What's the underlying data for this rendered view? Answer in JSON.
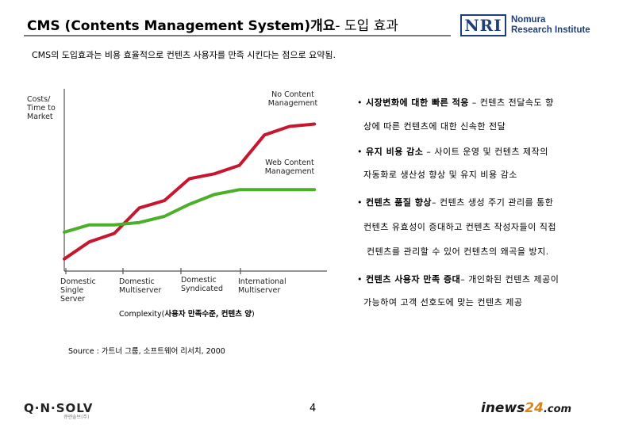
{
  "header": {
    "title_main": "CMS (Contents Management System)개요",
    "title_sub": "- 도입 효과",
    "logo_mark": "NRI",
    "logo_name_line1": "Nomura",
    "logo_name_line2": "Research Institute"
  },
  "summary": "CMS의 도입효과는 비용 효율적으로 컨텐츠 사용자를 만족 시킨다는 점으로 요약됨.",
  "chart_data": {
    "type": "line",
    "ylabel": "Costs/ Time to Market",
    "xlabel_prefix": "Complexity(",
    "xlabel_bold": "사용자 만족수준, 컨텐츠 양",
    "xlabel_suffix": ")",
    "grid": false,
    "legend": "inline labels at line ends",
    "categories": [
      "Domestic Single Server",
      "Domestic Multiserver",
      "Domestic Syndicated",
      "International Multiserver"
    ],
    "series": [
      {
        "name": "No Content Management",
        "color": "#c8162f",
        "x": [
          0,
          1,
          2,
          3,
          4,
          5,
          6,
          7,
          8,
          9,
          10
        ],
        "values": [
          10,
          24,
          31,
          52,
          58,
          76,
          80,
          87,
          112,
          119,
          121
        ]
      },
      {
        "name": "Web Content Management",
        "color": "#4caf2a",
        "x": [
          0,
          1,
          2,
          3,
          4,
          5,
          6,
          7,
          8,
          9,
          10
        ],
        "values": [
          32,
          38,
          38,
          40,
          45,
          55,
          63,
          67,
          67,
          67,
          67
        ]
      }
    ],
    "ylim": [
      0,
      150
    ],
    "xlim": [
      0,
      10.5
    ]
  },
  "bullets": [
    {
      "bold": "시장변화에 대한 빠른 적응",
      "rest": " – 컨텐츠 전달속도 향",
      "cont": "상에 따른 컨텐츠에 대한 신속한 전달"
    },
    {
      "bold": "유지 비용 감소",
      "rest": " – 사이트 운영 및 컨텐츠 제작의",
      "cont": "자동화로 생산성 향상 및 유지 비용 감소"
    },
    {
      "bold": "컨텐츠 품질 향상",
      "rest": "– 컨텐츠 생성 주기 관리를 통한",
      "cont": "컨텐츠 유효성이 증대하고 컨텐츠 작성자들이 직접",
      "cont2": "컨텐츠를 관리할 수 있어 컨텐츠의 왜곡을 방지."
    },
    {
      "bold": "컨텐츠 사용자 만족 증대",
      "rest": "– 개인화된 컨텐츠 제공이",
      "cont": "가능하여 고객 선호도에 맞는 컨텐츠 제공"
    }
  ],
  "bullet_marker": "•",
  "source": "Source : 가트너 그룹, 소프트웨어 리서치, 2000",
  "page_number": "4",
  "footer": {
    "qnsolv_brand": "Q·N·SOLV",
    "qnsolv_tag": "큐엔솔브(주)",
    "inews_a": "inews",
    "inews_b": "24",
    "inews_c": ".com"
  }
}
